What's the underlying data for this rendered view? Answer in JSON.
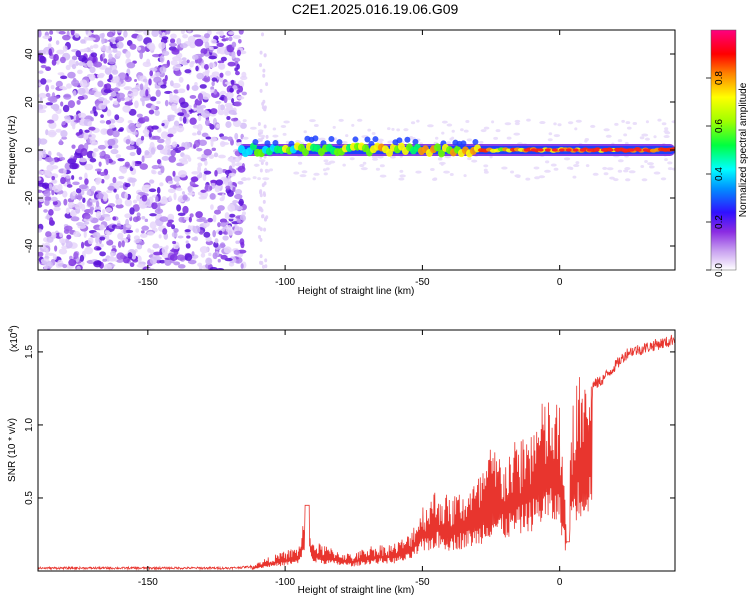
{
  "title": "C2E1.2025.016.19.06.G09",
  "chart_data": [
    {
      "type": "heatmap",
      "title": "C2E1.2025.016.19.06.G09",
      "xlabel": "Height of straight line (km)",
      "ylabel": "Frequency (Hz)",
      "xlim": [
        -190,
        42
      ],
      "ylim": [
        -50,
        50
      ],
      "xticks": [
        -150,
        -100,
        -50,
        0
      ],
      "yticks": [
        -40,
        -20,
        0,
        20,
        40
      ],
      "tone_frequency": 0,
      "noise_region": [
        -190,
        -117
      ],
      "tone_start": -117,
      "colorbar": {
        "label": "Normalized spectral amplitude",
        "range": [
          0,
          1
        ],
        "ticks": [
          0.0,
          0.2,
          0.4,
          0.6,
          0.8
        ],
        "tick_labels": [
          "0.0",
          "0.2",
          "0.4",
          "0.6",
          "0.8"
        ],
        "colormap": [
          "#ffffff",
          "#8a2be2",
          "#0000ff",
          "#00ffff",
          "#00ff00",
          "#ffff00",
          "#ff8000",
          "#ff0000",
          "#ff00ff"
        ]
      }
    },
    {
      "type": "line",
      "xlabel": "Height of straight line (km)",
      "ylabel": "SNR (10 * v/v)",
      "scale_label": "(x10",
      "scale_exponent": "4",
      "scale_close": ")",
      "xlim": [
        -190,
        42
      ],
      "ylim": [
        0,
        1.65
      ],
      "xticks": [
        -150,
        -100,
        -50,
        0
      ],
      "yticks": [
        0.5,
        1.0,
        1.5
      ],
      "ytick_labels": [
        "0.5",
        "1.0",
        "1.5"
      ],
      "color": "#e8352e",
      "x": [
        -190,
        -150,
        -120,
        -112,
        -108,
        -100,
        -95,
        -92,
        -90,
        -85,
        -80,
        -75,
        -70,
        -60,
        -55,
        -50,
        -45,
        -40,
        -35,
        -30,
        -25,
        -20,
        -15,
        -10,
        -5,
        0,
        3,
        4,
        5,
        10,
        15,
        20,
        25,
        30,
        35,
        40,
        42
      ],
      "y": [
        0.02,
        0.02,
        0.02,
        0.03,
        0.07,
        0.12,
        0.15,
        0.45,
        0.18,
        0.15,
        0.12,
        0.1,
        0.15,
        0.17,
        0.22,
        0.4,
        0.5,
        0.45,
        0.5,
        0.55,
        0.75,
        0.7,
        0.8,
        0.9,
        1.05,
        1.0,
        0.2,
        0.9,
        1.1,
        1.25,
        1.3,
        1.4,
        1.5,
        1.52,
        1.55,
        1.57,
        1.6
      ]
    }
  ]
}
